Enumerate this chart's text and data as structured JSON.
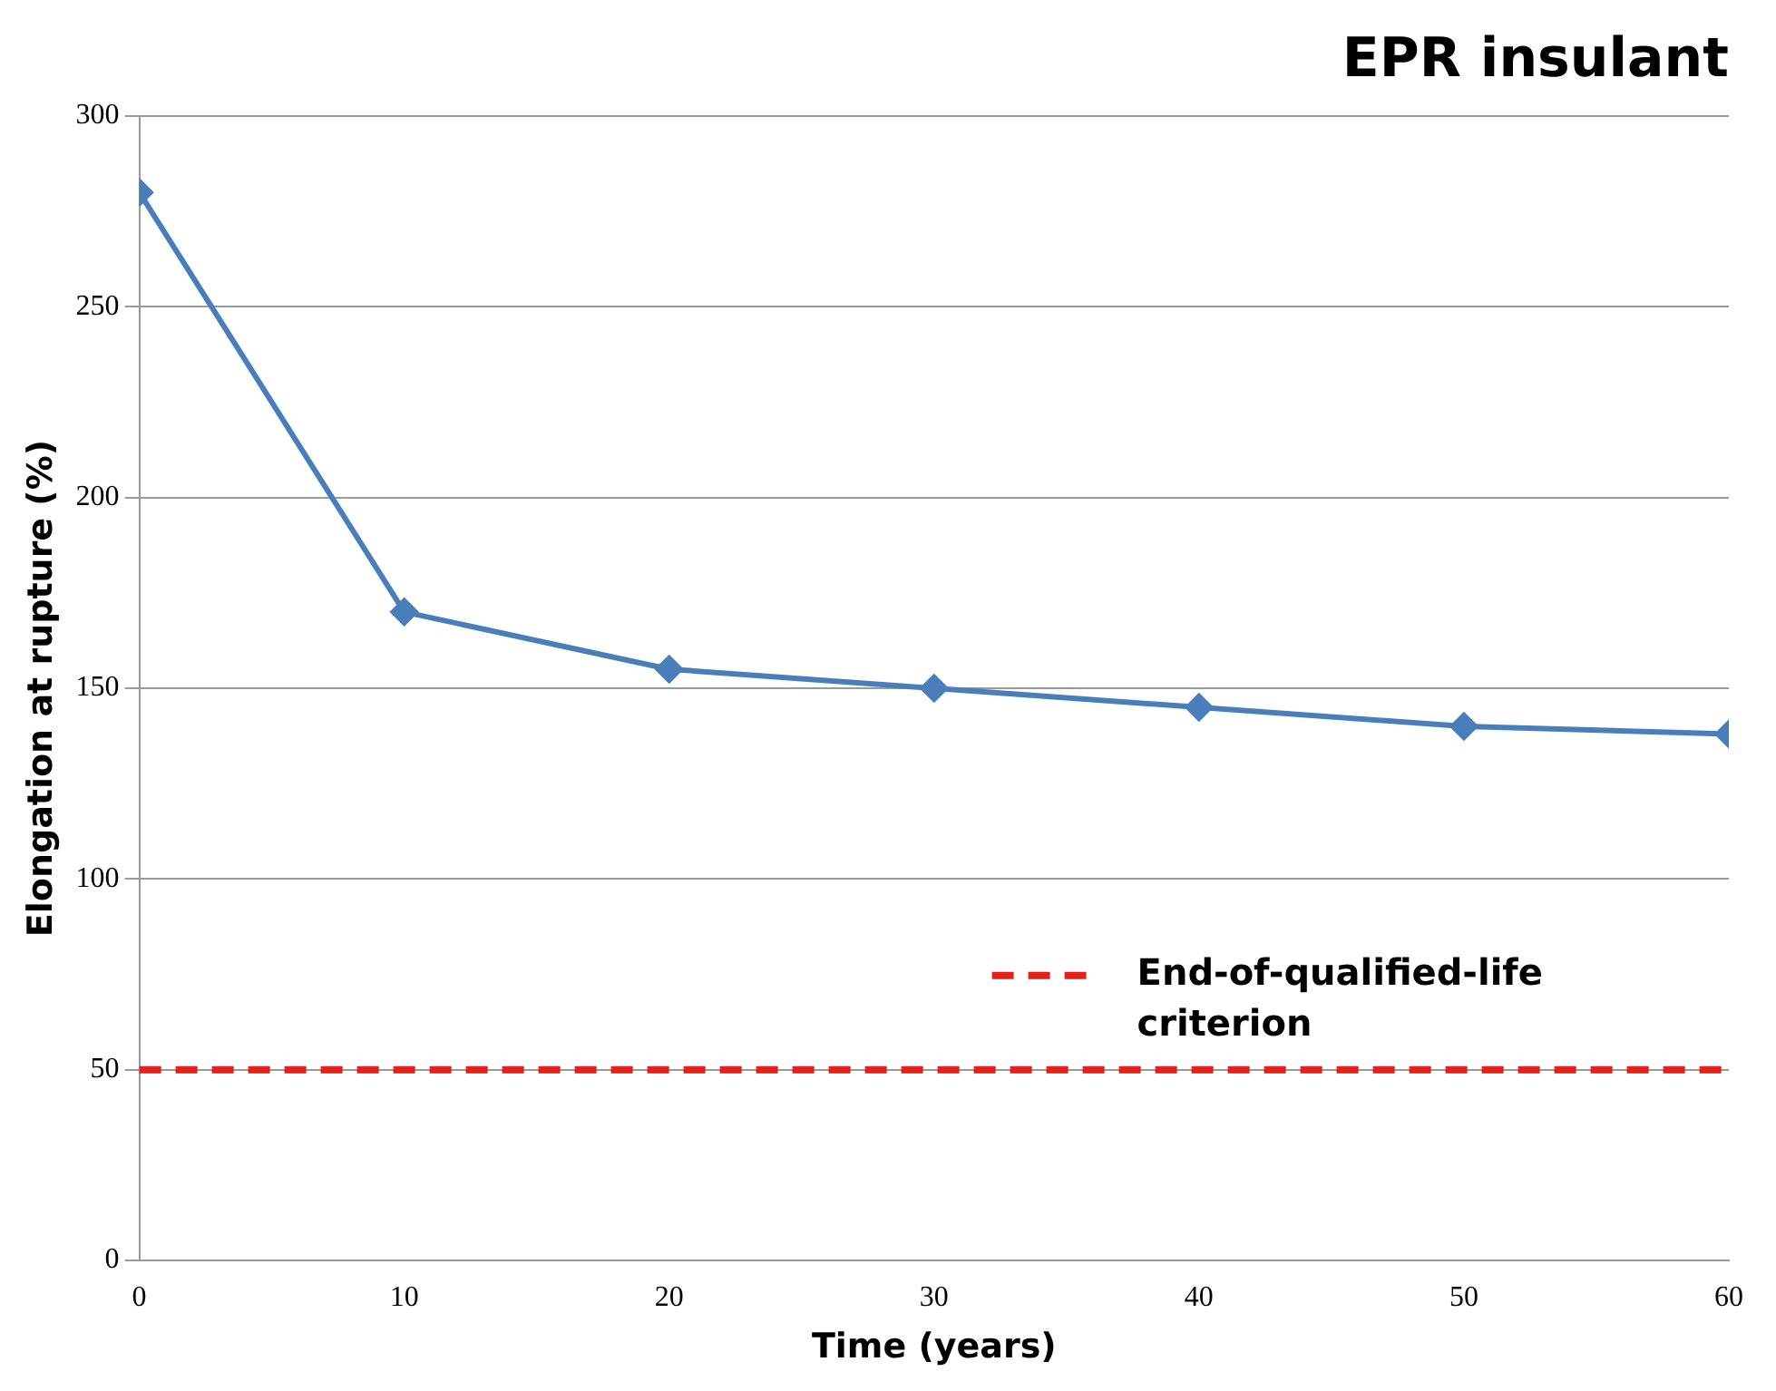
{
  "chart_data": {
    "type": "line",
    "title": "EPR insulant",
    "xlabel": "Time (years)",
    "ylabel": "Elongation at rupture (%)",
    "x": [
      0,
      10,
      20,
      30,
      40,
      50,
      60
    ],
    "series": [
      {
        "color": "#4a7ebb",
        "values": [
          280,
          170,
          155,
          150,
          145,
          140,
          138
        ]
      }
    ],
    "xlim": [
      0,
      60
    ],
    "xticks": [
      0,
      10,
      20,
      30,
      40,
      50,
      60
    ],
    "ylim": [
      0,
      300
    ],
    "yticks": [
      0,
      50,
      100,
      150,
      200,
      250,
      300
    ],
    "grid": "y",
    "marker": "diamond",
    "line_style": "solid",
    "ref_lines": [
      {
        "axis": "y",
        "value": 50,
        "label": "End-of-qualified-life criterion",
        "color": "#e3211c",
        "line_style": "dashed"
      }
    ]
  }
}
